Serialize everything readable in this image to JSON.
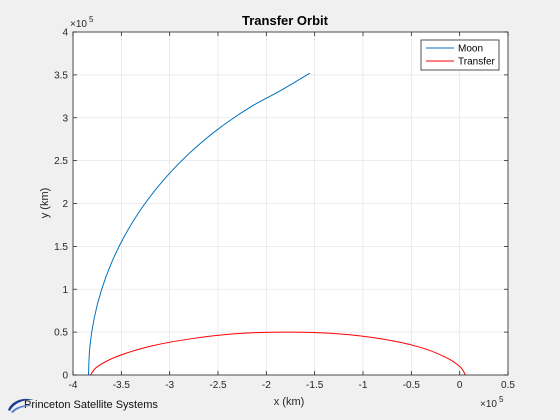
{
  "chart_data": {
    "type": "line",
    "title": "Transfer Orbit",
    "xlabel": "x (km)",
    "ylabel": "y (km)",
    "xlim": [
      -400000,
      50000
    ],
    "ylim": [
      0,
      400000
    ],
    "x_exponent_label": "×10",
    "x_exponent_power": "5",
    "y_exponent_label": "×10",
    "y_exponent_power": "5",
    "xticks": [
      -400000,
      -350000,
      -300000,
      -250000,
      -200000,
      -150000,
      -100000,
      -50000,
      0,
      50000
    ],
    "xtick_labels": [
      "-4",
      "-3.5",
      "-3",
      "-2.5",
      "-2",
      "-1.5",
      "-1",
      "-0.5",
      "0",
      "0.5"
    ],
    "yticks": [
      0,
      50000,
      100000,
      150000,
      200000,
      250000,
      300000,
      350000,
      400000
    ],
    "ytick_labels": [
      "0",
      "0.5",
      "1",
      "1.5",
      "2",
      "2.5",
      "3",
      "3.5",
      "4"
    ],
    "grid": true,
    "legend_position": "top-right",
    "series": [
      {
        "name": "Moon",
        "color": "#0072bd",
        "x": [
          -384000,
          -382500,
          -378000,
          -370500,
          -360000,
          -346700,
          -330600,
          -311800,
          -290600,
          -267000,
          -241300,
          -213700,
          -184500,
          -155000
        ],
        "y": [
          0,
          33500,
          66700,
          99400,
          131300,
          162100,
          191800,
          220000,
          246600,
          271300,
          293900,
          314300,
          332200,
          352000
        ]
      },
      {
        "name": "Transfer",
        "color": "#ff0000",
        "x": [
          -382000,
          -374500,
          -353500,
          -320000,
          -276500,
          -227000,
          -175000,
          -125000,
          -80000,
          -43000,
          -16000,
          0,
          6000
        ],
        "y": [
          0,
          10000,
          22000,
          33500,
          42500,
          48500,
          50000,
          48000,
          42000,
          33000,
          21500,
          10000,
          0
        ]
      }
    ]
  },
  "footer": {
    "brand": "Princeton Satellite Systems"
  }
}
